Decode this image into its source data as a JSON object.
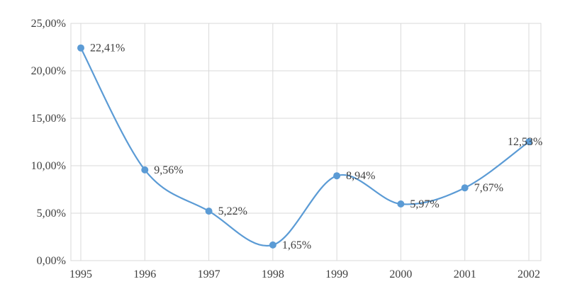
{
  "page": {
    "background_color": "#ffffff"
  },
  "chart_data": {
    "type": "line",
    "title": "",
    "xlabel": "",
    "ylabel": "",
    "categories": [
      "1995",
      "1996",
      "1997",
      "1998",
      "1999",
      "2000",
      "2001",
      "2002"
    ],
    "values": [
      22.41,
      9.56,
      5.22,
      1.65,
      8.94,
      5.97,
      7.67,
      12.53
    ],
    "data_labels": [
      "22,41%",
      "9,56%",
      "5,22%",
      "1,65%",
      "8,94%",
      "5,97%",
      "7,67%",
      "12,53%"
    ],
    "ylim": [
      0,
      25
    ],
    "y_axis": {
      "ticks": [
        0,
        5,
        10,
        15,
        20,
        25
      ],
      "tick_labels": [
        "0,00%",
        "5,00%",
        "10,00%",
        "15,00%",
        "20,00%",
        "25,00%"
      ]
    },
    "grid": true,
    "legend": "none",
    "smooth": true,
    "style": {
      "line_color": "#5B9BD5",
      "marker_color": "#5B9BD5",
      "gridline_color": "#D9D9D9",
      "plot_border_color": "#D9D9D9",
      "text_color": "#404040",
      "line_width": 2.2,
      "marker_radius": 5
    }
  }
}
